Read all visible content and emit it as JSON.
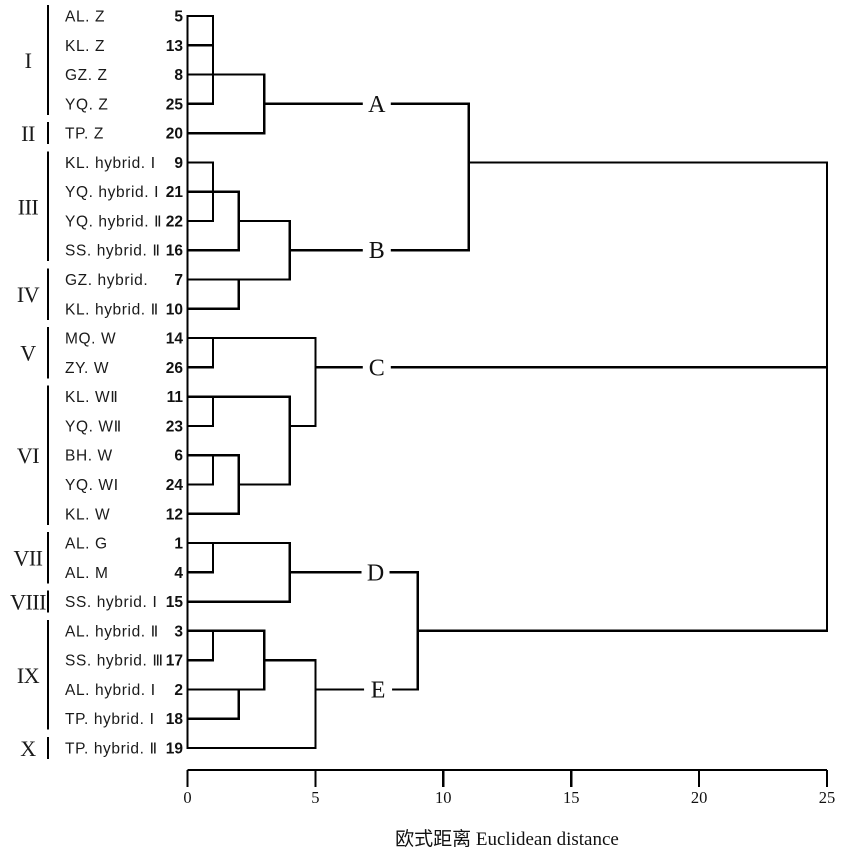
{
  "style": {
    "line_color": "#000000",
    "background": "#ffffff"
  },
  "chart_data": {
    "type": "dendrogram",
    "orientation": "horizontal",
    "xlabel": "欧式距离 Euclidean distance",
    "x_ticks": [
      "0",
      "5",
      "10",
      "15",
      "20",
      "25"
    ],
    "xlim": [
      0,
      25
    ],
    "grid": false,
    "leaves": [
      {
        "row": 1,
        "group": "I",
        "label": "AL. Z",
        "num": "5"
      },
      {
        "row": 2,
        "group": "I",
        "label": "KL. Z",
        "num": "13"
      },
      {
        "row": 3,
        "group": "I",
        "label": "GZ. Z",
        "num": "8"
      },
      {
        "row": 4,
        "group": "I",
        "label": "YQ. Z",
        "num": "25"
      },
      {
        "row": 5,
        "group": "II",
        "label": "TP. Z",
        "num": "20"
      },
      {
        "row": 6,
        "group": "III",
        "label": "KL. hybrid. Ⅰ",
        "num": "9"
      },
      {
        "row": 7,
        "group": "III",
        "label": "YQ. hybrid. Ⅰ",
        "num": "21"
      },
      {
        "row": 8,
        "group": "III",
        "label": "YQ. hybrid. Ⅱ",
        "num": "22"
      },
      {
        "row": 9,
        "group": "III",
        "label": "SS. hybrid. Ⅱ",
        "num": "16"
      },
      {
        "row": 10,
        "group": "IV",
        "label": "GZ. hybrid.",
        "num": "7"
      },
      {
        "row": 11,
        "group": "IV",
        "label": "KL. hybrid. Ⅱ",
        "num": "10"
      },
      {
        "row": 12,
        "group": "V",
        "label": "MQ. W",
        "num": "14"
      },
      {
        "row": 13,
        "group": "V",
        "label": "ZY. W",
        "num": "26"
      },
      {
        "row": 14,
        "group": "VI",
        "label": "KL. WⅡ",
        "num": "11"
      },
      {
        "row": 15,
        "group": "VI",
        "label": "YQ. WⅡ",
        "num": "23"
      },
      {
        "row": 16,
        "group": "VI",
        "label": "BH. W",
        "num": "6"
      },
      {
        "row": 17,
        "group": "VI",
        "label": "YQ. WⅠ",
        "num": "24"
      },
      {
        "row": 18,
        "group": "VI",
        "label": "KL. W",
        "num": "12"
      },
      {
        "row": 19,
        "group": "VII",
        "label": "AL. G",
        "num": "1"
      },
      {
        "row": 20,
        "group": "VII",
        "label": "AL. M",
        "num": "4"
      },
      {
        "row": 21,
        "group": "VIII",
        "label": "SS. hybrid. Ⅰ",
        "num": "15"
      },
      {
        "row": 22,
        "group": "IX",
        "label": "AL. hybrid. Ⅱ",
        "num": "3"
      },
      {
        "row": 23,
        "group": "IX",
        "label": "SS. hybrid. Ⅲ",
        "num": "17"
      },
      {
        "row": 24,
        "group": "IX",
        "label": "AL. hybrid. Ⅰ",
        "num": "2"
      },
      {
        "row": 25,
        "group": "IX",
        "label": "TP. hybrid. Ⅰ",
        "num": "18"
      },
      {
        "row": 26,
        "group": "X",
        "label": "TP. hybrid. Ⅱ",
        "num": "19"
      }
    ],
    "groups": [
      {
        "name": "I",
        "from_row": 1,
        "to_row": 4
      },
      {
        "name": "II",
        "from_row": 5,
        "to_row": 5
      },
      {
        "name": "III",
        "from_row": 6,
        "to_row": 9
      },
      {
        "name": "IV",
        "from_row": 10,
        "to_row": 11
      },
      {
        "name": "V",
        "from_row": 12,
        "to_row": 13
      },
      {
        "name": "VI",
        "from_row": 14,
        "to_row": 18
      },
      {
        "name": "VII",
        "from_row": 19,
        "to_row": 20
      },
      {
        "name": "VIII",
        "from_row": 21,
        "to_row": 21
      },
      {
        "name": "IX",
        "from_row": 22,
        "to_row": 25
      },
      {
        "name": "X",
        "from_row": 26,
        "to_row": 26
      }
    ],
    "cluster_labels": [
      {
        "name": "A",
        "row": 4,
        "d": 7.4
      },
      {
        "name": "B",
        "row": 9,
        "d": 7.4
      },
      {
        "name": "C",
        "row": 13,
        "d": 7.4
      },
      {
        "name": "D",
        "row": 20,
        "d": 7.35
      },
      {
        "name": "E",
        "row": 24,
        "d": 7.45
      }
    ],
    "clusters": {
      "A": [
        "I",
        "II"
      ],
      "B": [
        "III",
        "IV"
      ],
      "C": [
        "V",
        "VI"
      ],
      "D": [
        "VII",
        "VIII"
      ],
      "E": [
        "IX",
        "X"
      ]
    },
    "merge_distances": {
      "A_B": 11,
      "D_E": 9,
      "root": 25
    },
    "links": {
      "horizontals": [
        [
          1,
          0,
          1
        ],
        [
          2,
          0,
          1
        ],
        [
          3,
          0,
          3
        ],
        [
          4,
          0,
          1
        ],
        [
          4,
          3,
          11
        ],
        [
          5,
          0,
          3
        ],
        [
          6,
          0,
          1
        ],
        [
          6,
          11,
          25
        ],
        [
          7,
          0,
          2
        ],
        [
          8,
          0,
          1
        ],
        [
          8,
          2,
          4
        ],
        [
          9,
          0,
          2
        ],
        [
          9,
          4,
          11
        ],
        [
          10,
          0,
          2
        ],
        [
          10,
          2,
          4
        ],
        [
          11,
          0,
          2
        ],
        [
          12,
          0,
          5
        ],
        [
          13,
          0,
          1
        ],
        [
          13,
          5,
          25
        ],
        [
          14,
          0,
          4
        ],
        [
          15,
          0,
          1
        ],
        [
          15,
          4,
          5
        ],
        [
          16,
          0,
          2
        ],
        [
          17,
          0,
          1
        ],
        [
          17,
          2,
          4
        ],
        [
          18,
          0,
          2
        ],
        [
          19,
          0,
          4
        ],
        [
          20,
          0,
          1
        ],
        [
          20,
          4,
          9
        ],
        [
          21,
          0,
          4
        ],
        [
          22,
          0,
          3
        ],
        [
          22,
          9,
          25
        ],
        [
          23,
          0,
          1
        ],
        [
          23,
          3,
          5
        ],
        [
          24,
          0,
          3
        ],
        [
          24,
          5,
          9
        ],
        [
          25,
          0,
          2
        ],
        [
          26,
          0,
          5
        ]
      ],
      "verticals": [
        [
          0,
          1,
          26
        ],
        [
          1,
          1,
          4
        ],
        [
          3,
          3,
          5
        ],
        [
          1,
          6,
          8
        ],
        [
          2,
          7,
          9
        ],
        [
          4,
          8,
          10
        ],
        [
          2,
          10,
          11
        ],
        [
          11,
          4,
          9
        ],
        [
          1,
          12,
          13
        ],
        [
          1,
          14,
          15
        ],
        [
          1,
          16,
          17
        ],
        [
          2,
          16,
          18
        ],
        [
          4,
          14,
          17
        ],
        [
          5,
          12,
          15
        ],
        [
          1,
          19,
          20
        ],
        [
          4,
          19,
          21
        ],
        [
          1,
          22,
          23
        ],
        [
          2,
          24,
          25
        ],
        [
          3,
          22,
          24
        ],
        [
          5,
          23,
          26
        ],
        [
          9,
          20,
          24
        ],
        [
          25,
          6,
          22
        ]
      ]
    }
  }
}
